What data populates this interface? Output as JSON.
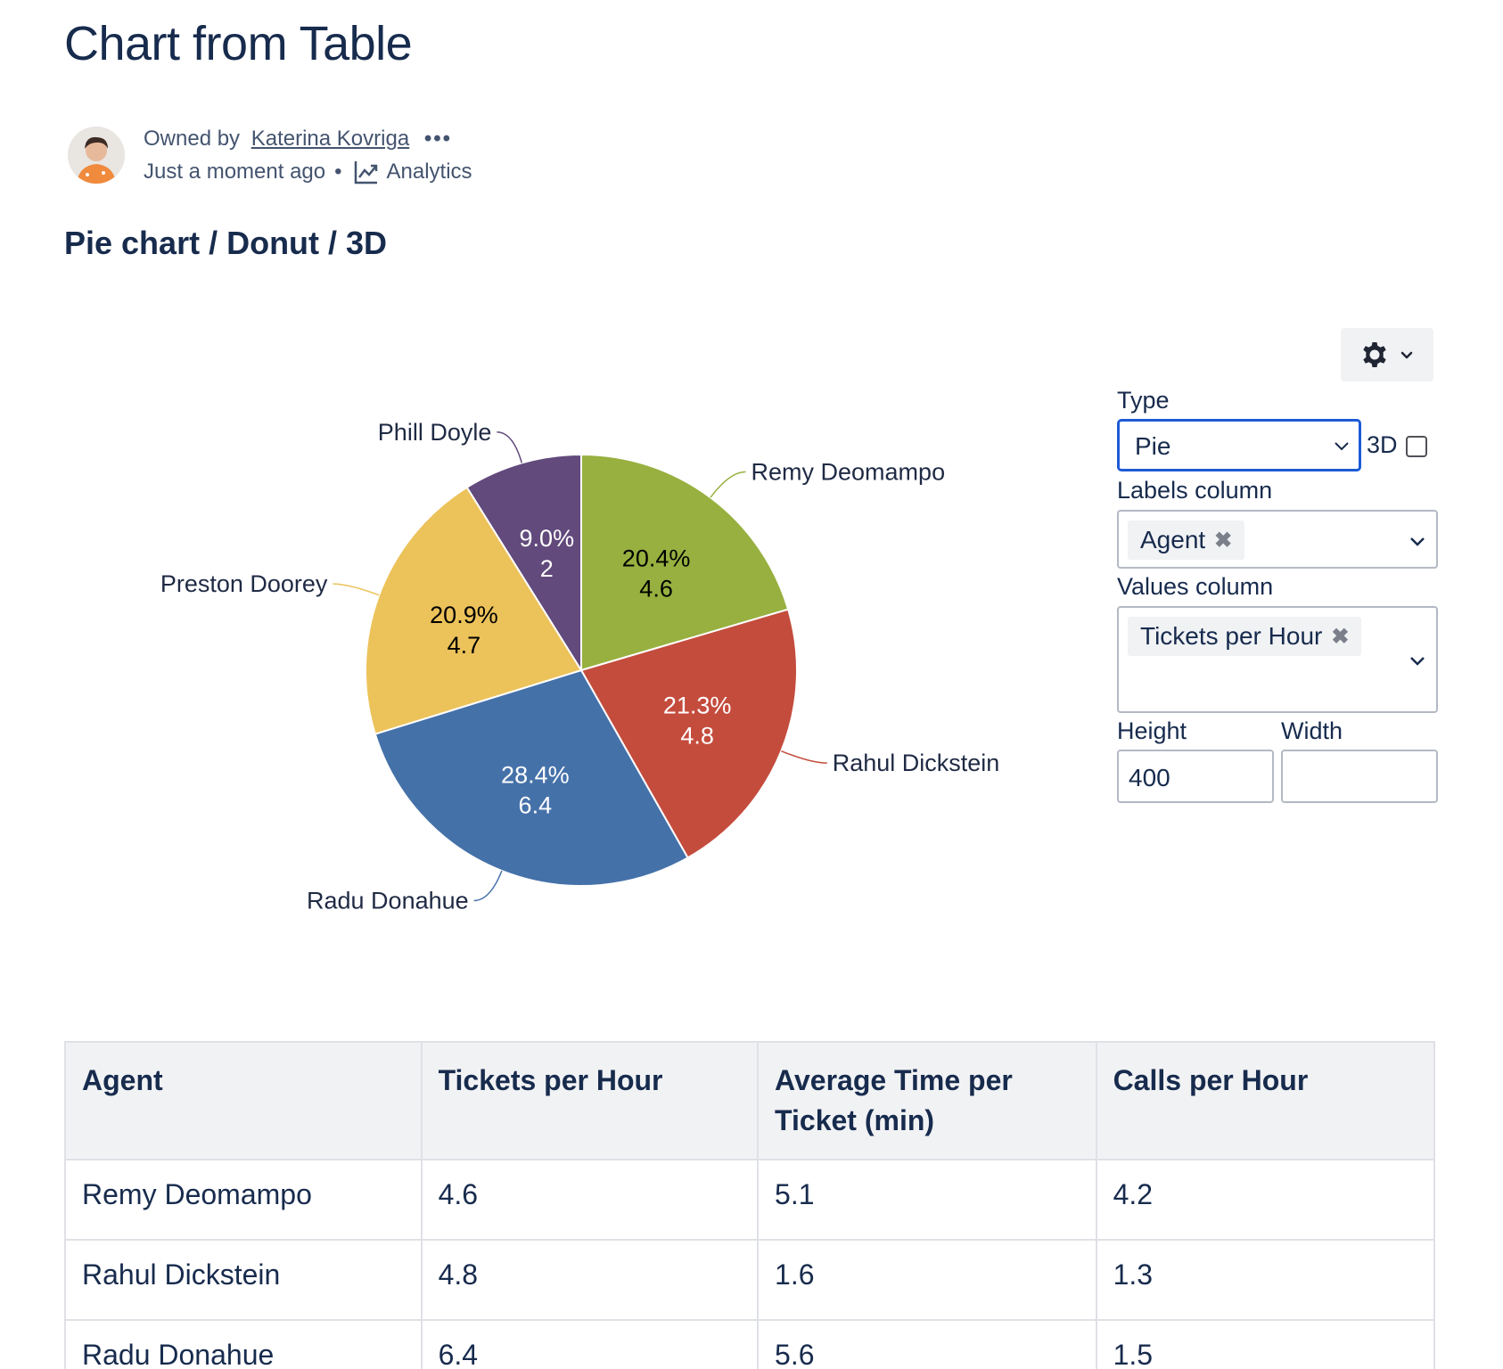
{
  "page": {
    "title": "Chart from Table",
    "owned_by_label": "Owned by",
    "owner_name": "Katerina Kovriga",
    "more_label": "•••",
    "timestamp": "Just a moment ago",
    "separator": "•",
    "analytics_label": "Analytics",
    "section_heading": "Pie chart / Donut / 3D"
  },
  "settings_panel": {
    "type_label": "Type",
    "type_value": "Pie",
    "threed_label": "3D",
    "threed_checked": false,
    "labels_column_label": "Labels column",
    "labels_column_value": "Agent",
    "values_column_label": "Values column",
    "values_column_value": "Tickets per Hour",
    "height_label": "Height",
    "height_value": "400",
    "width_label": "Width",
    "width_value": ""
  },
  "chart_data": {
    "type": "pie",
    "labels": [
      "Remy Deomampo",
      "Rahul Dickstein",
      "Radu Donahue",
      "Preston Doorey",
      "Phill Doyle"
    ],
    "values": [
      4.6,
      4.8,
      6.4,
      4.7,
      2
    ],
    "percent_labels": [
      "20.4%",
      "21.3%",
      "28.4%",
      "20.9%",
      "9.0%"
    ],
    "value_labels": [
      "4.6",
      "4.8",
      "6.4",
      "4.7",
      "2"
    ],
    "colors": [
      "#97b03f",
      "#c44c3d",
      "#4571a9",
      "#ecc25a",
      "#624a7c"
    ],
    "label_text_colors": [
      "#000000",
      "#ffffff",
      "#ffffff",
      "#000000",
      "#ffffff"
    ]
  },
  "table": {
    "headers": [
      "Agent",
      "Tickets per Hour",
      "Average Time per Ticket (min)",
      "Calls per Hour"
    ],
    "rows": [
      [
        "Remy Deomampo",
        "4.6",
        "5.1",
        "4.2"
      ],
      [
        "Rahul Dickstein",
        "4.8",
        "1.6",
        "1.3"
      ],
      [
        "Radu Donahue",
        "6.4",
        "5.6",
        "1.5"
      ]
    ]
  }
}
